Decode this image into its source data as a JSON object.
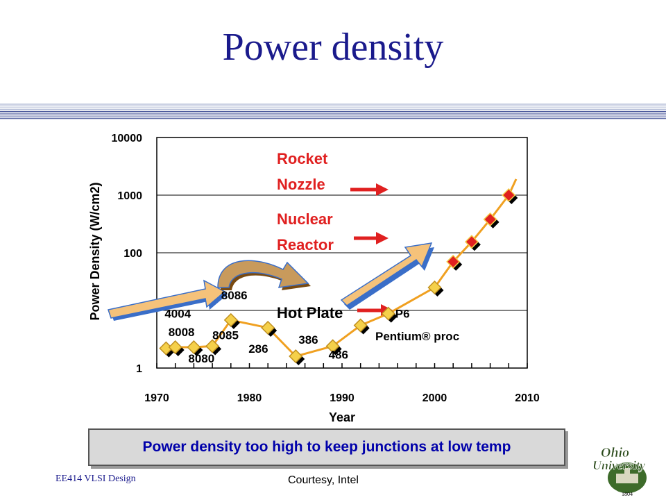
{
  "slide": {
    "title": "Power density",
    "caption": "Power density too high to keep junctions at low temp",
    "footer_left": "EE414 VLSI Design",
    "footer_center": "Courtesy, Intel",
    "logo_text": "Ohio University",
    "logo_year": "1804"
  },
  "colors": {
    "title": "#1a1a8c",
    "marker_fill_early": "#f5d04a",
    "marker_fill_late": "#e02020",
    "line": "#f0a020",
    "zone_text": "#e02020",
    "hot_plate_text": "#000000",
    "arrow": "#e02020"
  },
  "chart_data": {
    "type": "line",
    "title": "",
    "xlabel": "Year",
    "ylabel": "Power Density (W/cm2)",
    "xlim": [
      1970,
      2010
    ],
    "ylim": [
      1,
      10000
    ],
    "yscale": "log",
    "xticks": [
      1970,
      1980,
      1990,
      2000,
      2010
    ],
    "yticks": [
      1,
      10,
      100,
      1000,
      10000
    ],
    "ytick_labels": [
      "1",
      "",
      "100",
      "1000",
      "10000"
    ],
    "grid": "horizontal",
    "series": [
      {
        "points": [
          {
            "x": 1971,
            "y": 2.2,
            "label": "4004"
          },
          {
            "x": 1972,
            "y": 2.3,
            "label": "8008"
          },
          {
            "x": 1974,
            "y": 2.3,
            "label": "8080"
          },
          {
            "x": 1976,
            "y": 2.4,
            "label": "8085"
          },
          {
            "x": 1978,
            "y": 6.8,
            "label": "8086"
          },
          {
            "x": 1982,
            "y": 5.0,
            "label": "286"
          },
          {
            "x": 1985,
            "y": 1.6,
            "label": "386"
          },
          {
            "x": 1989,
            "y": 2.4,
            "label": "486"
          },
          {
            "x": 1992,
            "y": 5.5,
            "label": ""
          },
          {
            "x": 1995,
            "y": 8.8,
            "label": "P6"
          },
          {
            "x": 2000,
            "y": 25,
            "label": ""
          },
          {
            "x": 2002,
            "y": 70,
            "label": ""
          },
          {
            "x": 2004,
            "y": 155,
            "label": ""
          },
          {
            "x": 2006,
            "y": 380,
            "label": ""
          },
          {
            "x": 2008,
            "y": 1000,
            "label": ""
          }
        ],
        "extra_labels": [
          "Pentium® proc"
        ]
      }
    ],
    "annotations": [
      "Rocket",
      "Nozzle",
      "Nuclear",
      "Reactor",
      "Hot Plate"
    ]
  }
}
